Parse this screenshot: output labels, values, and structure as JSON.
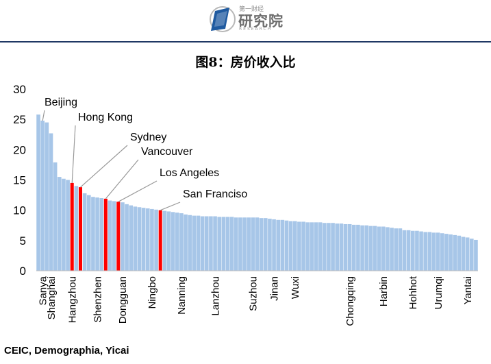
{
  "header": {
    "logo_top": "第一财经",
    "logo_cn": "研究院",
    "logo_en": "RESEARCH"
  },
  "title": "图8：房价收入比",
  "source": "CEIC, Demographia, Yicai",
  "colors": {
    "bar": "#a7c6e8",
    "highlight": "#ff0000",
    "axis": "#bfbfbf",
    "text": "#000000",
    "leader": "#999999"
  },
  "chart_data": {
    "type": "bar",
    "ylim": [
      0,
      30
    ],
    "yticks": [
      0,
      5,
      10,
      15,
      20,
      25,
      30
    ],
    "grid": false,
    "values": [
      25.8,
      24.8,
      24.5,
      22.7,
      17.9,
      15.5,
      15.2,
      15.0,
      14.5,
      14.0,
      13.8,
      12.8,
      12.5,
      12.2,
      12.1,
      12.0,
      11.9,
      11.6,
      11.5,
      11.4,
      11.3,
      11.0,
      10.8,
      10.6,
      10.5,
      10.4,
      10.3,
      10.2,
      10.1,
      10.0,
      9.9,
      9.8,
      9.7,
      9.6,
      9.5,
      9.3,
      9.2,
      9.1,
      9.1,
      9.0,
      9.0,
      9.0,
      9.0,
      8.9,
      8.9,
      8.9,
      8.9,
      8.8,
      8.8,
      8.8,
      8.8,
      8.8,
      8.8,
      8.7,
      8.7,
      8.6,
      8.5,
      8.4,
      8.4,
      8.3,
      8.2,
      8.2,
      8.1,
      8.1,
      8.0,
      8.0,
      8.0,
      8.0,
      7.9,
      7.9,
      7.9,
      7.8,
      7.8,
      7.7,
      7.7,
      7.6,
      7.6,
      7.5,
      7.5,
      7.4,
      7.4,
      7.3,
      7.3,
      7.2,
      7.1,
      7.0,
      7.0,
      6.7,
      6.7,
      6.6,
      6.6,
      6.5,
      6.4,
      6.4,
      6.3,
      6.3,
      6.2,
      6.1,
      6.0,
      5.9,
      5.8,
      5.6,
      5.5,
      5.3,
      5.1
    ],
    "highlighted": [
      8,
      10,
      16,
      19,
      29
    ],
    "x_tick_labels": [
      {
        "index": 1,
        "label": "Sanya"
      },
      {
        "index": 3,
        "label": "Shanghai"
      },
      {
        "index": 8,
        "label": "Hangzhou"
      },
      {
        "index": 14,
        "label": "Shenzhen"
      },
      {
        "index": 20,
        "label": "Dongguan"
      },
      {
        "index": 27,
        "label": "Ningbo"
      },
      {
        "index": 34,
        "label": "Nanning"
      },
      {
        "index": 42,
        "label": "Lanzhou"
      },
      {
        "index": 51,
        "label": "Suzhou"
      },
      {
        "index": 56,
        "label": "Jinan"
      },
      {
        "index": 61,
        "label": "Wuxi"
      },
      {
        "index": 74,
        "label": "Chongqing"
      },
      {
        "index": 82,
        "label": "Harbin"
      },
      {
        "index": 89,
        "label": "Hohhot"
      },
      {
        "index": 95,
        "label": "Urumqi"
      },
      {
        "index": 102,
        "label": "Yantai"
      }
    ],
    "annotations": [
      {
        "label": "Beijing",
        "index": 1
      },
      {
        "label": "Hong Kong",
        "index": 8
      },
      {
        "label": "Sydney",
        "index": 10
      },
      {
        "label": "Vancouver",
        "index": 16
      },
      {
        "label": "Los Angeles",
        "index": 19
      },
      {
        "label": "San Franciso",
        "index": 29
      }
    ]
  }
}
